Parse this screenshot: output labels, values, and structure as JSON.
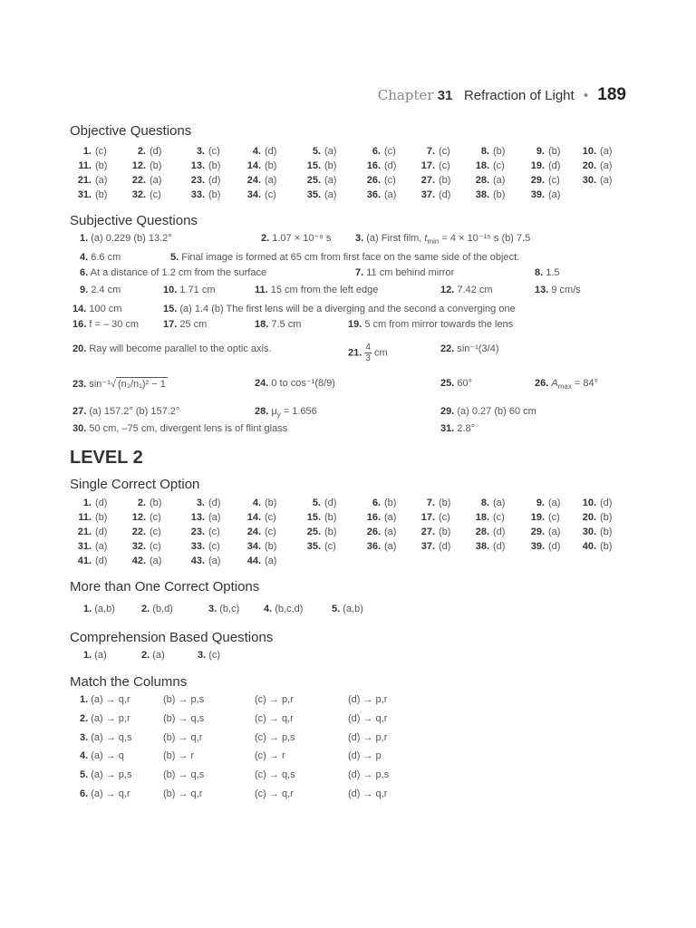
{
  "header": {
    "chapter_label": "Chapter",
    "chapter_number": "31",
    "chapter_title": "Refraction of Light",
    "bullet": "•",
    "page_number": "189"
  },
  "objective": {
    "title": "Objective Questions",
    "rows": [
      [
        [
          "1.",
          "(c)"
        ],
        [
          "2.",
          "(d)"
        ],
        [
          "3.",
          "(c)"
        ],
        [
          "4.",
          "(d)"
        ],
        [
          "5.",
          "(a)"
        ],
        [
          "6.",
          "(c)"
        ],
        [
          "7.",
          "(c)"
        ],
        [
          "8.",
          "(b)"
        ],
        [
          "9.",
          "(b)"
        ],
        [
          "10.",
          "(a)"
        ]
      ],
      [
        [
          "11.",
          "(b)"
        ],
        [
          "12.",
          "(b)"
        ],
        [
          "13.",
          "(b)"
        ],
        [
          "14.",
          "(b)"
        ],
        [
          "15.",
          "(b)"
        ],
        [
          "16.",
          "(d)"
        ],
        [
          "17.",
          "(c)"
        ],
        [
          "18.",
          "(c)"
        ],
        [
          "19.",
          "(d)"
        ],
        [
          "20.",
          "(a)"
        ]
      ],
      [
        [
          "21.",
          "(a)"
        ],
        [
          "22.",
          "(a)"
        ],
        [
          "23.",
          "(d)"
        ],
        [
          "24.",
          "(a)"
        ],
        [
          "25.",
          "(a)"
        ],
        [
          "26.",
          "(c)"
        ],
        [
          "27.",
          "(b)"
        ],
        [
          "28.",
          "(a)"
        ],
        [
          "29.",
          "(c)"
        ],
        [
          "30.",
          "(a)"
        ]
      ],
      [
        [
          "31.",
          "(b)"
        ],
        [
          "32.",
          "(c)"
        ],
        [
          "33.",
          "(b)"
        ],
        [
          "34.",
          "(c)"
        ],
        [
          "35.",
          "(a)"
        ],
        [
          "36.",
          "(a)"
        ],
        [
          "37.",
          "(d)"
        ],
        [
          "38.",
          "(b)"
        ],
        [
          "39.",
          "(a)"
        ]
      ]
    ]
  },
  "subjective": {
    "title": "Subjective Questions",
    "items": [
      {
        "n": "1.",
        "t": "(a) 0.229   (b) 13.2°"
      },
      {
        "n": "2.",
        "t": "1.07 × 10⁻⁸ s"
      },
      {
        "n": "3.",
        "t": "(a) First film,  ",
        "t_var": "t",
        "t_sub": "min",
        "t2": " = 4 × 10⁻¹⁵ s   (b) 7.5"
      },
      {
        "n": "4.",
        "t": "6.6 cm"
      },
      {
        "n": "5.",
        "t": "Final image is formed at 65 cm from first face on the same side of the object."
      },
      {
        "n": "6.",
        "t": "At a distance of 1.2 cm from the surface"
      },
      {
        "n": "7.",
        "t": "11 cm behind mirror"
      },
      {
        "n": "8.",
        "t": "1.5"
      },
      {
        "n": "9.",
        "t": "2.4 cm"
      },
      {
        "n": "10.",
        "t": "1.71 cm"
      },
      {
        "n": "11.",
        "t": "15 cm from the left edge"
      },
      {
        "n": "12.",
        "t": "7.42 cm"
      },
      {
        "n": "13.",
        "t": "9 cm/s"
      },
      {
        "n": "14.",
        "t": "100 cm"
      },
      {
        "n": "15.",
        "t": "(a) 1.4   (b) The first lens will be a diverging and the second a converging one"
      },
      {
        "n": "16.",
        "t": "f = – 30 cm"
      },
      {
        "n": "17.",
        "t": "25 cm"
      },
      {
        "n": "18.",
        "t": "7.5 cm"
      },
      {
        "n": "19.",
        "t": "5 cm from mirror towards the lens"
      },
      {
        "n": "20.",
        "t": "Ray will become parallel to the optic axis."
      },
      {
        "n": "21.",
        "num": "4",
        "den": "3",
        "t": "cm"
      },
      {
        "n": "22.",
        "t": "sin⁻¹(3/4)"
      },
      {
        "n": "23.",
        "t": "sin⁻¹",
        "rad": "(n₂/n₁)² − 1"
      },
      {
        "n": "24.",
        "t": "0 to cos⁻¹(8/9)"
      },
      {
        "n": "25.",
        "t": "60°"
      },
      {
        "n": "26.",
        "t_var": "A",
        "t_sub": "max",
        "t2": " = 84°"
      },
      {
        "n": "27.",
        "t": "(a) 157.2°   (b) 157.2°"
      },
      {
        "n": "28.",
        "t": "μ",
        "t_sub": "y",
        "t2": " = 1.656"
      },
      {
        "n": "29.",
        "t": "(a) 0.27   (b) 60 cm"
      },
      {
        "n": "30.",
        "t": "50 cm, –75 cm, divergent lens is of flint glass"
      },
      {
        "n": "31.",
        "t": "2.8°"
      }
    ]
  },
  "level": "LEVEL 2",
  "single": {
    "title": "Single Correct Option",
    "rows": [
      [
        [
          "1.",
          "(d)"
        ],
        [
          "2.",
          "(b)"
        ],
        [
          "3.",
          "(d)"
        ],
        [
          "4.",
          "(b)"
        ],
        [
          "5.",
          "(d)"
        ],
        [
          "6.",
          "(b)"
        ],
        [
          "7.",
          "(b)"
        ],
        [
          "8.",
          "(a)"
        ],
        [
          "9.",
          "(a)"
        ],
        [
          "10.",
          "(d)"
        ]
      ],
      [
        [
          "11.",
          "(b)"
        ],
        [
          "12.",
          "(c)"
        ],
        [
          "13.",
          "(a)"
        ],
        [
          "14.",
          "(c)"
        ],
        [
          "15.",
          "(b)"
        ],
        [
          "16.",
          "(a)"
        ],
        [
          "17.",
          "(c)"
        ],
        [
          "18.",
          "(c)"
        ],
        [
          "19.",
          "(c)"
        ],
        [
          "20.",
          "(b)"
        ]
      ],
      [
        [
          "21.",
          "(d)"
        ],
        [
          "22.",
          "(c)"
        ],
        [
          "23.",
          "(c)"
        ],
        [
          "24.",
          "(c)"
        ],
        [
          "25.",
          "(b)"
        ],
        [
          "26.",
          "(a)"
        ],
        [
          "27.",
          "(b)"
        ],
        [
          "28.",
          "(d)"
        ],
        [
          "29.",
          "(a)"
        ],
        [
          "30.",
          "(b)"
        ]
      ],
      [
        [
          "31.",
          "(a)"
        ],
        [
          "32.",
          "(c)"
        ],
        [
          "33.",
          "(c)"
        ],
        [
          "34.",
          "(b)"
        ],
        [
          "35.",
          "(c)"
        ],
        [
          "36.",
          "(a)"
        ],
        [
          "37.",
          "(d)"
        ],
        [
          "38.",
          "(d)"
        ],
        [
          "39.",
          "(d)"
        ],
        [
          "40.",
          "(b)"
        ]
      ],
      [
        [
          "41.",
          "(d)"
        ],
        [
          "42.",
          "(a)"
        ],
        [
          "43.",
          "(a)"
        ],
        [
          "44.",
          "(a)"
        ]
      ]
    ]
  },
  "multiple": {
    "title": "More than One Correct Options",
    "items": [
      [
        "1.",
        "(a,b)"
      ],
      [
        "2.",
        "(b,d)"
      ],
      [
        "3.",
        "(b,c)"
      ],
      [
        "4.",
        "(b,c,d)"
      ],
      [
        "5.",
        "(a,b)"
      ]
    ]
  },
  "comprehension": {
    "title": "Comprehension Based Questions",
    "items": [
      [
        "1.",
        "(a)"
      ],
      [
        "2.",
        "(a)"
      ],
      [
        "3.",
        "(c)"
      ]
    ]
  },
  "match": {
    "title": "Match the Columns",
    "rows": [
      [
        "1.",
        "(a) → q,r",
        "(b) → p,s",
        "(c) → p,r",
        "(d) → p,r"
      ],
      [
        "2.",
        "(a) → p,r",
        "(b) → q,s",
        "(c) → q,r",
        "(d) → q,r"
      ],
      [
        "3.",
        "(a) → q,s",
        "(b) → q,r",
        "(c) → p,s",
        "(d) → p,r"
      ],
      [
        "4.",
        "(a) → q",
        "(b) → r",
        "(c) → r",
        "(d) → p"
      ],
      [
        "5.",
        "(a) → p,s",
        "(b) → q,s",
        "(c) → q,s",
        "(d) → p,s"
      ],
      [
        "6.",
        "(a) → q,r",
        "(b) → q,r",
        "(c) → q,r",
        "(d) → q,r"
      ]
    ]
  }
}
